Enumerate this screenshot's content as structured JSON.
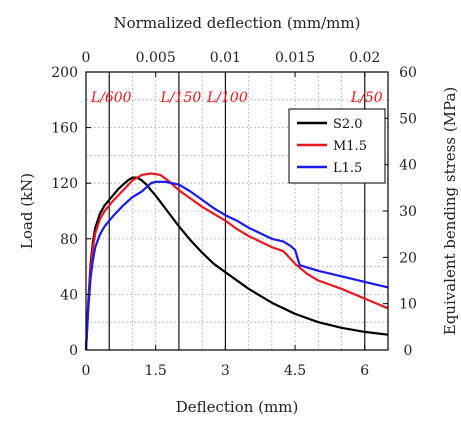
{
  "chart_data": {
    "type": "line",
    "xlabel": "Deflection (mm)",
    "ylabel": "Load (kN)",
    "top_xlabel": "Normalized deflection (mm/mm)",
    "right_ylabel": "Equivalent bending stress (MPa)",
    "xlim": [
      0,
      6.5
    ],
    "ylim": [
      0,
      200
    ],
    "x_ticks": [
      0,
      1.5,
      3,
      4.5,
      6
    ],
    "x_tick_labels": [
      "0",
      "1.5",
      "3",
      "4.5",
      "6"
    ],
    "y_ticks": [
      0,
      40,
      80,
      120,
      160,
      200
    ],
    "y_tick_labels": [
      "0",
      "40",
      "80",
      "120",
      "160",
      "200"
    ],
    "top_ticks": [
      0,
      0.005,
      0.01,
      0.015,
      0.02
    ],
    "top_tick_labels": [
      "0",
      "0.005",
      "0.01",
      "0.015",
      "0.02"
    ],
    "top_scale_mm_per_unit": 300,
    "right_ticks": [
      0,
      10,
      20,
      30,
      40,
      50,
      60
    ],
    "right_tick_labels": [
      "0",
      "10",
      "20",
      "30",
      "40",
      "50",
      "60"
    ],
    "right_ylim": [
      0,
      60
    ],
    "grid": true,
    "legend_position": "top-right",
    "deflection_limits": [
      {
        "label": "L/600",
        "x": 0.5
      },
      {
        "label": "L/150",
        "x": 2.0
      },
      {
        "label": "L/100",
        "x": 3.0
      },
      {
        "label": "L/50",
        "x": 6.0
      }
    ],
    "series": [
      {
        "name": "S2.0",
        "color": "#000000",
        "x": [
          0,
          0.05,
          0.1,
          0.15,
          0.2,
          0.3,
          0.4,
          0.5,
          0.6,
          0.7,
          0.8,
          0.9,
          1.0,
          1.1,
          1.2,
          1.3,
          1.4,
          1.5,
          1.75,
          2.0,
          2.25,
          2.5,
          2.75,
          3.0,
          3.5,
          4.0,
          4.5,
          5.0,
          5.5,
          6.0,
          6.5
        ],
        "y": [
          0,
          35,
          62,
          78,
          88,
          98,
          104,
          108,
          112,
          116,
          119,
          122,
          124,
          124,
          122,
          119,
          115,
          111,
          100,
          89,
          79,
          70,
          62,
          56,
          44,
          34,
          26,
          20,
          16,
          13,
          11
        ]
      },
      {
        "name": "M1.5",
        "color": "#e8191f",
        "x": [
          0,
          0.05,
          0.1,
          0.15,
          0.2,
          0.3,
          0.4,
          0.5,
          0.6,
          0.8,
          1.0,
          1.2,
          1.4,
          1.6,
          1.8,
          2.0,
          2.25,
          2.5,
          2.75,
          3.0,
          3.25,
          3.5,
          3.75,
          4.0,
          4.25,
          4.5,
          4.75,
          5.0,
          5.5,
          6.0,
          6.5
        ],
        "y": [
          0,
          33,
          58,
          74,
          84,
          94,
          100,
          104,
          108,
          115,
          122,
          126,
          127,
          126,
          121,
          115,
          109,
          103,
          98,
          93,
          87,
          82,
          78,
          74,
          71,
          62,
          55,
          50,
          44,
          37,
          30
        ]
      },
      {
        "name": "L1.5",
        "color": "#1a1aee",
        "x": [
          0,
          0.05,
          0.1,
          0.15,
          0.2,
          0.3,
          0.4,
          0.5,
          0.6,
          0.8,
          1.0,
          1.2,
          1.4,
          1.5,
          1.7,
          2.0,
          2.25,
          2.5,
          2.75,
          3.0,
          3.25,
          3.5,
          3.75,
          4.0,
          4.25,
          4.4,
          4.5,
          4.6,
          5.0,
          5.5,
          6.0,
          6.5
        ],
        "y": [
          0,
          30,
          52,
          65,
          74,
          83,
          89,
          93,
          97,
          104,
          110,
          114,
          120,
          121,
          121,
          119,
          114,
          108,
          102,
          97,
          93,
          88,
          84,
          80,
          78,
          75,
          72,
          61,
          57,
          53,
          49,
          45
        ]
      }
    ]
  }
}
